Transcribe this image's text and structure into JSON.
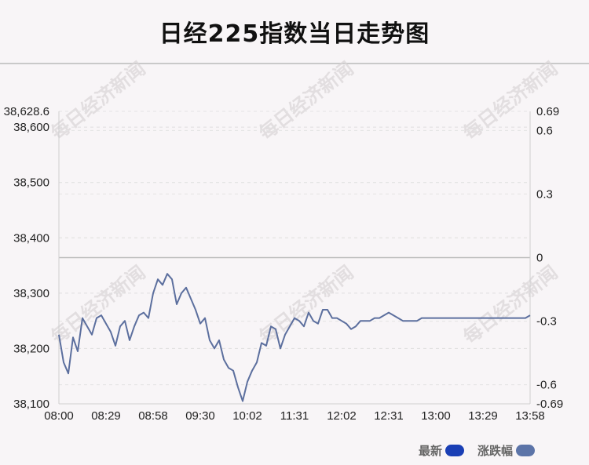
{
  "title": "日经225指数当日走势图",
  "watermark": "每日经济新闻",
  "legend": [
    {
      "label": "最新",
      "color": "#1a3fb5"
    },
    {
      "label": "涨跌幅",
      "color": "#5c74a8"
    }
  ],
  "chart_data": {
    "type": "line",
    "x_ticks": [
      "08:00",
      "08:29",
      "08:58",
      "09:30",
      "10:02",
      "11:31",
      "12:02",
      "12:31",
      "13:00",
      "13:29",
      "13:58"
    ],
    "y_left_ticks": [
      "38,628.6",
      "38,600",
      "38,500",
      "38,400",
      "38,300",
      "38,200",
      "38,100"
    ],
    "y_left_range": [
      38100,
      38628.6
    ],
    "y_right_ticks": [
      "0.69",
      "0.6",
      "0.3",
      "0",
      "-0.3",
      "-0.6",
      "-0.69"
    ],
    "y_right_range": [
      -0.69,
      0.69
    ],
    "line_color": "#5c6f9e",
    "series": [
      {
        "name": "最新",
        "x": [
          0,
          0.5,
          1,
          1.5,
          2,
          2.5,
          3,
          3.5,
          4,
          4.5,
          5,
          5.5,
          6,
          6.5,
          7,
          7.5,
          8,
          8.5,
          9,
          9.5,
          10,
          10.5,
          11,
          11.5,
          12,
          12.5,
          13,
          13.5,
          14,
          14.5,
          15,
          15.5,
          16,
          16.5,
          17,
          17.5,
          18,
          18.5,
          19,
          19.5,
          20,
          20.5,
          21,
          21.5,
          22,
          22.5,
          23,
          23.5,
          24,
          24.5,
          25,
          25.5,
          26,
          26.5,
          27,
          27.5,
          28,
          28.5,
          29,
          29.5,
          30,
          30.5,
          31,
          31.5,
          32,
          32.5,
          33,
          33.5,
          34,
          34.5,
          35,
          35.5,
          36,
          36.5,
          37,
          37.5,
          38,
          38.5,
          39,
          39.5,
          40,
          40.5,
          41,
          41.5,
          42,
          42.5,
          43,
          43.5,
          44,
          44.5,
          45,
          45.5,
          46,
          46.5,
          47,
          47.5,
          48,
          48.5,
          49,
          49.5,
          50
        ],
        "values": [
          38225,
          38175,
          38155,
          38220,
          38195,
          38255,
          38240,
          38225,
          38255,
          38260,
          38245,
          38230,
          38205,
          38240,
          38250,
          38215,
          38240,
          38260,
          38265,
          38255,
          38300,
          38325,
          38315,
          38335,
          38325,
          38280,
          38300,
          38310,
          38290,
          38270,
          38245,
          38255,
          38215,
          38200,
          38215,
          38180,
          38165,
          38160,
          38130,
          38105,
          38140,
          38160,
          38175,
          38210,
          38205,
          38240,
          38235,
          38200,
          38225,
          38240,
          38255,
          38250,
          38240,
          38265,
          38250,
          38245,
          38270,
          38270,
          38255,
          38255,
          38250,
          38245,
          38235,
          38240,
          38250,
          38250,
          38250,
          38255,
          38255,
          38260,
          38265,
          38260,
          38255,
          38250,
          38250,
          38250,
          38250,
          38255,
          38255,
          38255,
          38255,
          38255,
          38255,
          38255,
          38255,
          38255,
          38255,
          38255,
          38255,
          38255,
          38255,
          38255,
          38255,
          38255,
          38255,
          38255,
          38255,
          38255,
          38255,
          38255,
          38260
        ]
      }
    ]
  }
}
